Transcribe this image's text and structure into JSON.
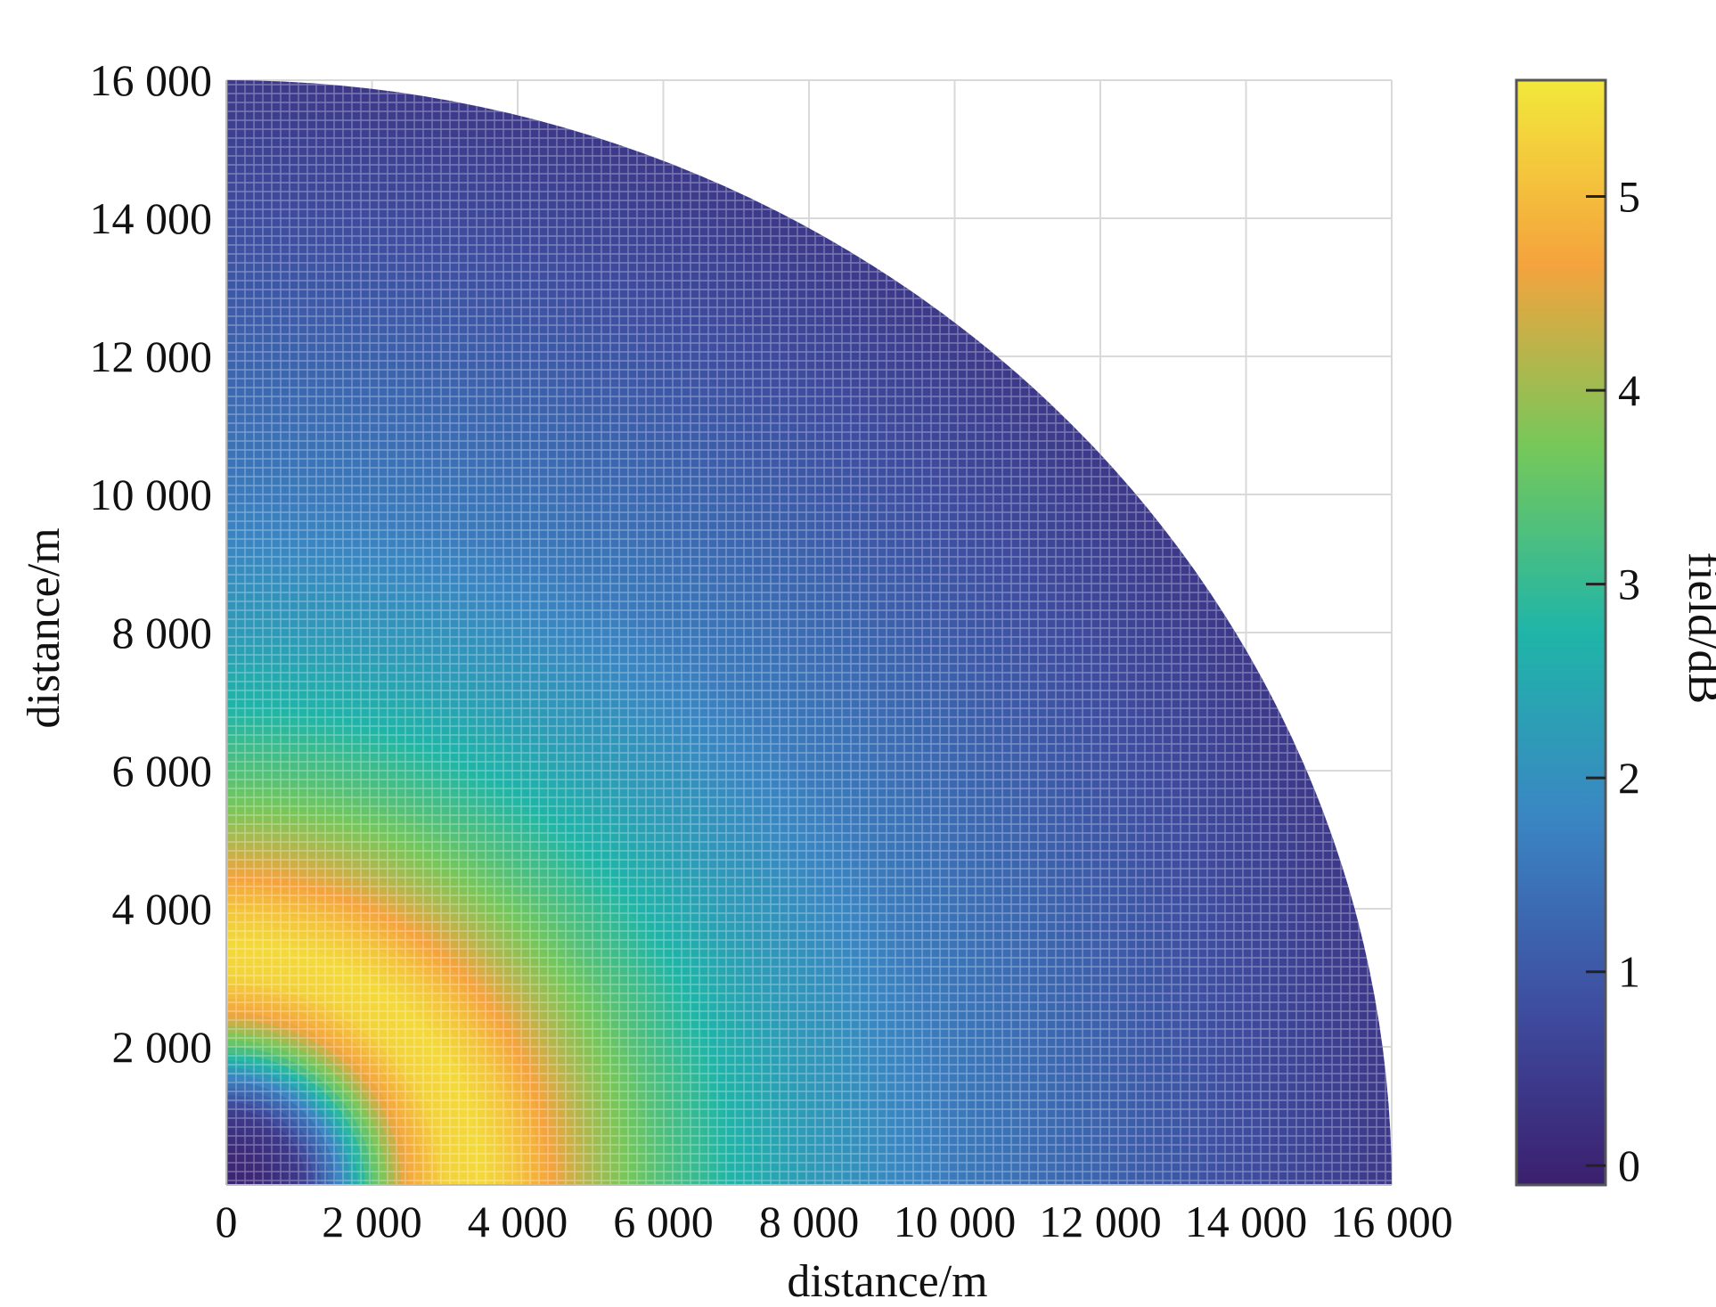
{
  "chart_data": {
    "type": "heatmap",
    "subtype": "polar-quadrant-field",
    "title": "",
    "xlabel": "distance/m",
    "ylabel": "distance/m",
    "colorbar_label": "field/dB",
    "xlim": [
      0,
      16000
    ],
    "ylim": [
      0,
      16000
    ],
    "x_ticks": [
      0,
      2000,
      4000,
      6000,
      8000,
      10000,
      12000,
      14000,
      16000
    ],
    "x_tick_labels": [
      "0",
      "2 000",
      "4 000",
      "6 000",
      "8 000",
      "10 000",
      "12 000",
      "14 000",
      "16 000"
    ],
    "y_ticks": [
      2000,
      4000,
      6000,
      8000,
      10000,
      12000,
      14000,
      16000
    ],
    "y_tick_labels": [
      "2 000",
      "4 000",
      "6 000",
      "8 000",
      "10 000",
      "12 000",
      "14 000",
      "16 000"
    ],
    "colorbar_range": [
      -0.1,
      5.6
    ],
    "colorbar_ticks": [
      0,
      1,
      2,
      3,
      4,
      5
    ],
    "colorbar_tick_labels": [
      "0",
      "1",
      "2",
      "3",
      "4",
      "5"
    ],
    "colormap": "viridis-like",
    "colormap_stops": [
      "#3b1f6e",
      "#3e4fa2",
      "#3a86c3",
      "#1fb5a8",
      "#75c85a",
      "#f5a33d",
      "#f2e83a"
    ],
    "domain_radius": 16000,
    "grid": true,
    "radial_profile": {
      "r": [
        0,
        500,
        1000,
        1500,
        2000,
        2500,
        3000,
        3500,
        4000,
        4500,
        5000,
        6000,
        7000,
        8000,
        9000,
        10000,
        11000,
        12000,
        13000,
        14000,
        15000,
        16000
      ],
      "field_db": [
        0.0,
        0.1,
        0.4,
        1.6,
        3.4,
        4.7,
        5.3,
        5.4,
        5.1,
        4.6,
        4.1,
        3.3,
        2.7,
        2.2,
        1.9,
        1.6,
        1.4,
        1.2,
        1.0,
        0.8,
        0.6,
        0.4
      ]
    }
  }
}
